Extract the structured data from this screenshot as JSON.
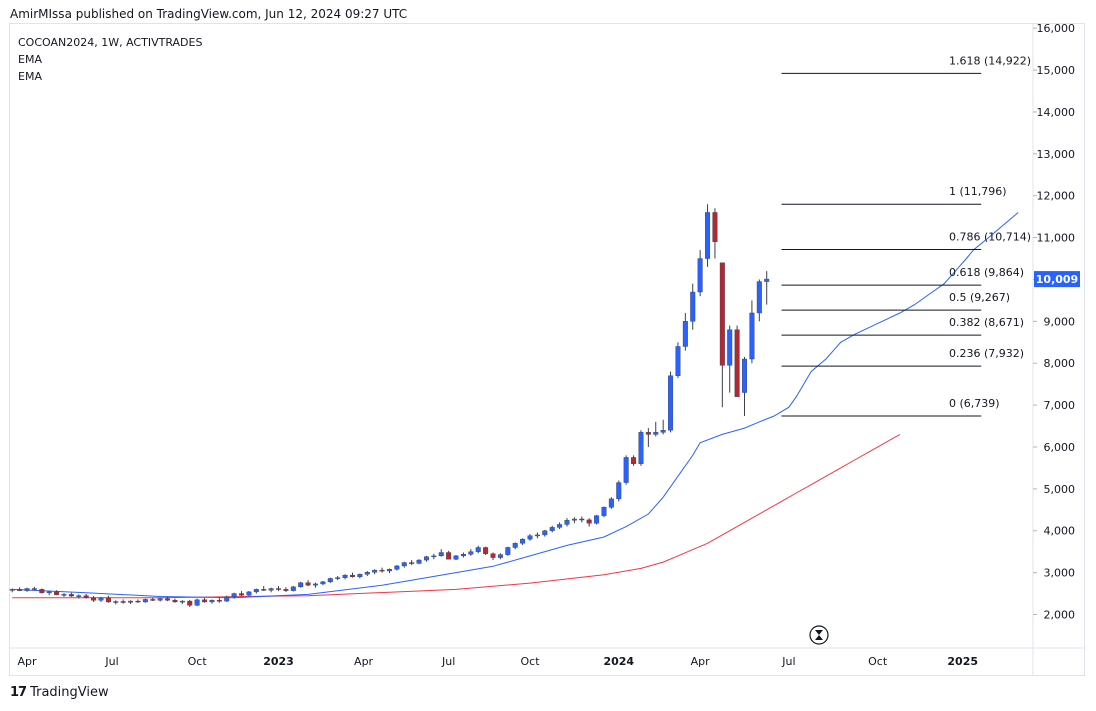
{
  "header": {
    "published": "AmirMIssa published on TradingView.com, Jun 12, 2024 09:27 UTC"
  },
  "legend": {
    "symbol": "COCOAN2024, 1W, ACTIVTRADES",
    "ema1": "EMA",
    "ema2": "EMA"
  },
  "footer": {
    "brand": "TradingView",
    "logo": "17"
  },
  "colors": {
    "up": "#2962ff",
    "down": "#b22833",
    "ema_fast": "#2962ff",
    "ema_slow": "#f23645",
    "price_badge": "#2962ff",
    "grid": "#f0f3fa"
  },
  "chart_data": {
    "type": "candlestick",
    "title": "COCOAN2024, 1W, ACTIVTRADES",
    "last_price": "10,009",
    "ylim": [
      1200,
      16100
    ],
    "yticks": [
      {
        "value": 2000,
        "label": "2,000"
      },
      {
        "value": 3000,
        "label": "3,000"
      },
      {
        "value": 4000,
        "label": "4,000"
      },
      {
        "value": 5000,
        "label": "5,000"
      },
      {
        "value": 6000,
        "label": "6,000"
      },
      {
        "value": 7000,
        "label": "7,000"
      },
      {
        "value": 8000,
        "label": "8,000"
      },
      {
        "value": 9000,
        "label": "9,000"
      },
      {
        "value": 10000,
        "label": "10,000"
      },
      {
        "value": 11000,
        "label": "11,000"
      },
      {
        "value": 12000,
        "label": "12,000"
      },
      {
        "value": 13000,
        "label": "13,000"
      },
      {
        "value": 14000,
        "label": "14,000"
      },
      {
        "value": 15000,
        "label": "15,000"
      },
      {
        "value": 16000,
        "label": "16,000"
      }
    ],
    "xlim": [
      -0.3,
      138
    ],
    "xticks": [
      {
        "index": 2,
        "label": "Apr",
        "bold": false
      },
      {
        "index": 13.5,
        "label": "Jul",
        "bold": false
      },
      {
        "index": 25,
        "label": "Oct",
        "bold": false
      },
      {
        "index": 36,
        "label": "2023",
        "bold": true
      },
      {
        "index": 47.5,
        "label": "Apr",
        "bold": false
      },
      {
        "index": 59,
        "label": "Jul",
        "bold": false
      },
      {
        "index": 70,
        "label": "Oct",
        "bold": false
      },
      {
        "index": 82,
        "label": "2024",
        "bold": true
      },
      {
        "index": 93,
        "label": "Apr",
        "bold": false
      },
      {
        "index": 105,
        "label": "Jul",
        "bold": false
      },
      {
        "index": 117,
        "label": "Oct",
        "bold": false
      },
      {
        "index": 128.5,
        "label": "2025",
        "bold": true
      }
    ],
    "candles": [
      [
        2580,
        2620,
        2530,
        2600
      ],
      [
        2600,
        2650,
        2560,
        2570
      ],
      [
        2570,
        2640,
        2540,
        2620
      ],
      [
        2620,
        2660,
        2580,
        2600
      ],
      [
        2600,
        2620,
        2500,
        2520
      ],
      [
        2520,
        2560,
        2460,
        2540
      ],
      [
        2540,
        2580,
        2460,
        2470
      ],
      [
        2470,
        2510,
        2420,
        2480
      ],
      [
        2480,
        2520,
        2420,
        2440
      ],
      [
        2440,
        2480,
        2380,
        2450
      ],
      [
        2450,
        2490,
        2380,
        2400
      ],
      [
        2400,
        2440,
        2300,
        2340
      ],
      [
        2340,
        2420,
        2300,
        2400
      ],
      [
        2400,
        2450,
        2280,
        2300
      ],
      [
        2300,
        2340,
        2240,
        2310
      ],
      [
        2310,
        2360,
        2260,
        2290
      ],
      [
        2290,
        2340,
        2250,
        2320
      ],
      [
        2320,
        2360,
        2280,
        2300
      ],
      [
        2300,
        2380,
        2280,
        2360
      ],
      [
        2360,
        2400,
        2320,
        2340
      ],
      [
        2340,
        2400,
        2310,
        2380
      ],
      [
        2380,
        2420,
        2320,
        2340
      ],
      [
        2340,
        2380,
        2280,
        2300
      ],
      [
        2300,
        2340,
        2250,
        2320
      ],
      [
        2320,
        2350,
        2180,
        2220
      ],
      [
        2220,
        2380,
        2200,
        2350
      ],
      [
        2350,
        2400,
        2280,
        2300
      ],
      [
        2300,
        2360,
        2260,
        2340
      ],
      [
        2340,
        2400,
        2280,
        2320
      ],
      [
        2320,
        2450,
        2300,
        2420
      ],
      [
        2420,
        2520,
        2380,
        2500
      ],
      [
        2500,
        2560,
        2440,
        2460
      ],
      [
        2460,
        2560,
        2440,
        2540
      ],
      [
        2540,
        2620,
        2500,
        2600
      ],
      [
        2600,
        2680,
        2560,
        2580
      ],
      [
        2580,
        2640,
        2530,
        2620
      ],
      [
        2620,
        2680,
        2560,
        2600
      ],
      [
        2600,
        2650,
        2540,
        2570
      ],
      [
        2570,
        2680,
        2550,
        2660
      ],
      [
        2660,
        2780,
        2640,
        2760
      ],
      [
        2760,
        2820,
        2680,
        2700
      ],
      [
        2700,
        2760,
        2640,
        2730
      ],
      [
        2730,
        2800,
        2700,
        2780
      ],
      [
        2780,
        2880,
        2750,
        2860
      ],
      [
        2860,
        2920,
        2820,
        2880
      ],
      [
        2880,
        2960,
        2840,
        2940
      ],
      [
        2940,
        3000,
        2880,
        2900
      ],
      [
        2900,
        2980,
        2860,
        2960
      ],
      [
        2960,
        3040,
        2920,
        3010
      ],
      [
        3010,
        3080,
        2960,
        3060
      ],
      [
        3060,
        3120,
        3000,
        3040
      ],
      [
        3040,
        3100,
        2990,
        3080
      ],
      [
        3080,
        3180,
        3050,
        3160
      ],
      [
        3160,
        3260,
        3120,
        3240
      ],
      [
        3240,
        3300,
        3180,
        3220
      ],
      [
        3220,
        3320,
        3200,
        3300
      ],
      [
        3300,
        3400,
        3260,
        3380
      ],
      [
        3380,
        3450,
        3320,
        3400
      ],
      [
        3400,
        3560,
        3380,
        3480
      ],
      [
        3480,
        3520,
        3360,
        3320
      ],
      [
        3320,
        3420,
        3300,
        3400
      ],
      [
        3400,
        3480,
        3360,
        3440
      ],
      [
        3440,
        3560,
        3400,
        3500
      ],
      [
        3500,
        3640,
        3460,
        3600
      ],
      [
        3600,
        3620,
        3420,
        3450
      ],
      [
        3450,
        3480,
        3300,
        3360
      ],
      [
        3360,
        3460,
        3320,
        3430
      ],
      [
        3430,
        3620,
        3400,
        3600
      ],
      [
        3600,
        3720,
        3560,
        3700
      ],
      [
        3700,
        3820,
        3660,
        3800
      ],
      [
        3800,
        3920,
        3760,
        3880
      ],
      [
        3880,
        3960,
        3820,
        3900
      ],
      [
        3900,
        4020,
        3860,
        4000
      ],
      [
        4000,
        4120,
        3960,
        4080
      ],
      [
        4080,
        4200,
        4040,
        4150
      ],
      [
        4150,
        4300,
        4100,
        4250
      ],
      [
        4250,
        4320,
        4180,
        4280
      ],
      [
        4280,
        4340,
        4200,
        4260
      ],
      [
        4260,
        4300,
        4100,
        4180
      ],
      [
        4180,
        4380,
        4150,
        4360
      ],
      [
        4360,
        4580,
        4320,
        4560
      ],
      [
        4560,
        4800,
        4520,
        4760
      ],
      [
        4760,
        5200,
        4700,
        5150
      ],
      [
        5150,
        5800,
        5100,
        5750
      ],
      [
        5750,
        5800,
        5550,
        5600
      ],
      [
        5600,
        6400,
        5550,
        6350
      ],
      [
        6350,
        6450,
        6000,
        6300
      ],
      [
        6300,
        6600,
        6250,
        6350
      ],
      [
        6350,
        6650,
        6300,
        6400
      ],
      [
        6400,
        7800,
        6350,
        7700
      ],
      [
        7700,
        8500,
        7650,
        8400
      ],
      [
        8400,
        9200,
        8300,
        9000
      ],
      [
        9000,
        9900,
        8800,
        9700
      ],
      [
        9700,
        10700,
        9600,
        10500
      ],
      [
        10500,
        11796,
        10300,
        11600
      ],
      [
        11600,
        11700,
        10500,
        10900
      ],
      [
        10400,
        10400,
        6950,
        7950
      ],
      [
        7950,
        8900,
        7300,
        8800
      ],
      [
        8800,
        8900,
        7250,
        7200
      ],
      [
        7300,
        8150,
        6739,
        8100
      ],
      [
        8100,
        9500,
        8000,
        9200
      ],
      [
        9200,
        10000,
        9000,
        9950
      ],
      [
        9950,
        10200,
        9400,
        10009
      ]
    ],
    "ema_fast": [
      [
        0,
        2600
      ],
      [
        10,
        2520
      ],
      [
        20,
        2430
      ],
      [
        30,
        2400
      ],
      [
        40,
        2480
      ],
      [
        50,
        2700
      ],
      [
        60,
        3000
      ],
      [
        65,
        3150
      ],
      [
        70,
        3400
      ],
      [
        75,
        3650
      ],
      [
        80,
        3850
      ],
      [
        83,
        4100
      ],
      [
        86,
        4400
      ],
      [
        88,
        4800
      ],
      [
        90,
        5300
      ],
      [
        92,
        5800
      ],
      [
        93,
        6100
      ],
      [
        96,
        6300
      ],
      [
        99,
        6450
      ],
      [
        101,
        6600
      ],
      [
        103,
        6739
      ],
      [
        105,
        6950
      ],
      [
        106,
        7200
      ],
      [
        107,
        7500
      ],
      [
        108,
        7800
      ],
      [
        110,
        8100
      ],
      [
        111,
        8300
      ],
      [
        112,
        8500
      ],
      [
        114,
        8700
      ],
      [
        117,
        8950
      ],
      [
        120,
        9200
      ],
      [
        122,
        9400
      ],
      [
        124,
        9650
      ],
      [
        126,
        9900
      ],
      [
        127,
        10100
      ],
      [
        128,
        10300
      ],
      [
        129,
        10500
      ],
      [
        130,
        10714
      ],
      [
        132,
        11000
      ],
      [
        134,
        11300
      ],
      [
        136,
        11600
      ]
    ],
    "ema_slow": [
      [
        0,
        2400
      ],
      [
        20,
        2400
      ],
      [
        40,
        2450
      ],
      [
        60,
        2600
      ],
      [
        70,
        2750
      ],
      [
        80,
        2950
      ],
      [
        85,
        3100
      ],
      [
        88,
        3250
      ],
      [
        90,
        3400
      ],
      [
        92,
        3550
      ],
      [
        94,
        3700
      ],
      [
        96,
        3900
      ],
      [
        98,
        4100
      ],
      [
        100,
        4300
      ],
      [
        102,
        4500
      ],
      [
        104,
        4700
      ],
      [
        106,
        4900
      ],
      [
        108,
        5100
      ],
      [
        110,
        5300
      ],
      [
        112,
        5500
      ],
      [
        114,
        5700
      ],
      [
        116,
        5900
      ],
      [
        118,
        6100
      ],
      [
        120,
        6300
      ]
    ],
    "fibonacci": {
      "x_start": 104,
      "x_end": 131,
      "levels": [
        {
          "value": 14922,
          "label": "1.618 (14,922)"
        },
        {
          "value": 11796,
          "label": "1 (11,796)"
        },
        {
          "value": 10714,
          "label": "0.786 (10,714)"
        },
        {
          "value": 9864,
          "label": "0.618 (9,864)"
        },
        {
          "value": 9267,
          "label": "0.5 (9,267)"
        },
        {
          "value": 8671,
          "label": "0.382 (8,671)"
        },
        {
          "value": 7932,
          "label": "0.236 (7,932)"
        },
        {
          "value": 6739,
          "label": "0 (6,739)"
        }
      ]
    }
  }
}
